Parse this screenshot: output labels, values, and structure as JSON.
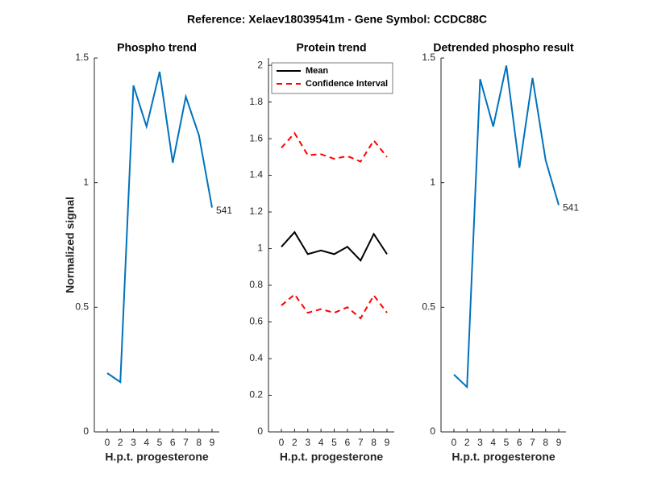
{
  "title": "Reference:  Xelaev18039541m - Gene Symbol:  CCDC88C",
  "chart_data": [
    {
      "type": "line",
      "title": "Phospho trend",
      "xlabel": "H.p.t. progesterone",
      "ylabel": "Normalized signal",
      "categories": [
        "0",
        "2",
        "3",
        "4",
        "5",
        "6",
        "7",
        "8",
        "9"
      ],
      "ylim": [
        0,
        1.5
      ],
      "yticks": [
        0,
        0.5,
        1,
        1.5
      ],
      "series": [
        {
          "color": "#0072bd",
          "values": [
            0.236,
            0.2,
            1.39,
            1.225,
            1.445,
            1.08,
            1.345,
            1.19,
            0.9
          ]
        }
      ],
      "annotation": "541"
    },
    {
      "type": "line",
      "title": "Protein trend",
      "xlabel": "H.p.t. progesterone",
      "categories": [
        "0",
        "2",
        "3",
        "4",
        "5",
        "6",
        "7",
        "8",
        "9"
      ],
      "ylim": [
        0,
        2.04
      ],
      "yticks": [
        0,
        0.2,
        0.4,
        0.6,
        0.8,
        1,
        1.2,
        1.4,
        1.6,
        1.8,
        2
      ],
      "legend": "upper left",
      "series": [
        {
          "name": "Mean",
          "color": "#000000",
          "style": "solid",
          "values": [
            1.01,
            1.09,
            0.97,
            0.99,
            0.97,
            1.01,
            0.935,
            1.08,
            0.97
          ]
        },
        {
          "name": "Confidence Interval",
          "color": "#ff0000",
          "style": "dashed",
          "values": [
            1.55,
            1.63,
            1.51,
            1.515,
            1.49,
            1.505,
            1.475,
            1.59,
            1.5
          ],
          "lower": [
            0.69,
            0.75,
            0.65,
            0.67,
            0.65,
            0.68,
            0.62,
            0.745,
            0.65
          ]
        }
      ]
    },
    {
      "type": "line",
      "title": "Detrended phospho result",
      "xlabel": "H.p.t. progesterone",
      "categories": [
        "0",
        "2",
        "3",
        "4",
        "5",
        "6",
        "7",
        "8",
        "9"
      ],
      "ylim": [
        0,
        1.5
      ],
      "yticks": [
        0,
        0.5,
        1,
        1.5
      ],
      "series": [
        {
          "color": "#0072bd",
          "values": [
            0.23,
            0.18,
            1.415,
            1.225,
            1.47,
            1.06,
            1.42,
            1.09,
            0.91
          ]
        }
      ],
      "annotation": "541"
    }
  ]
}
